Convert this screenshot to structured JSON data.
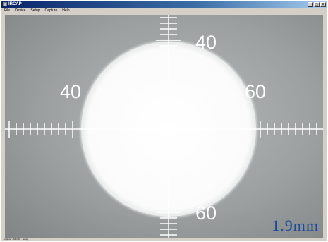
{
  "window": {
    "title": "IRCAP",
    "minimize": "_",
    "maximize": "□",
    "close": "X"
  },
  "menu": [
    "File",
    "Device",
    "Setup",
    "Capture",
    "Help"
  ],
  "reticle": {
    "label_top": "40",
    "label_left": "40",
    "label_right": "60",
    "label_bottom": "60"
  },
  "scale_label": "1.9mm",
  "status": "Capture: 464×340 · ready",
  "colors": {
    "overlay_text": "#1a4a9a",
    "reticle": "#ffffff",
    "spot": "#ffffff"
  }
}
